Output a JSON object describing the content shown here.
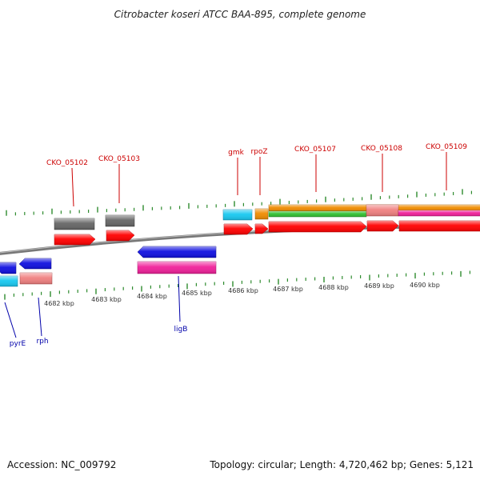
{
  "header": {
    "title": "Citrobacter koseri ATCC BAA-895, complete genome"
  },
  "footer": {
    "accession": "Accession: NC_009792",
    "summary": "Topology: circular; Length: 4,720,462 bp; Genes: 5,121"
  },
  "colors": {
    "backbone": "#888888",
    "tick": "#2e8b2e",
    "label_forward": "#cc0000",
    "label_reverse": "#0000aa",
    "cds_forward": "#ff0000",
    "cds_reverse": "#1010e0",
    "gene_gray": "#666666",
    "gene_cyan": "#18c8f0",
    "gene_orange": "#f08c00",
    "gene_green": "#30c030",
    "gene_salmon": "#f08080",
    "gene_magenta": "#f0209a"
  },
  "kbp_labels": [
    "4682 kbp",
    "4683 kbp",
    "4684 kbp",
    "4685 kbp",
    "4686 kbp",
    "4687 kbp",
    "4688 kbp",
    "4689 kbp",
    "4690 kbp"
  ],
  "labels_forward": [
    "CKO_05102",
    "CKO_05103",
    "gmk",
    "rpoZ",
    "CKO_05107",
    "CKO_05108",
    "CKO_05109"
  ],
  "labels_reverse": [
    "pyrE",
    "rph",
    "ligB"
  ]
}
